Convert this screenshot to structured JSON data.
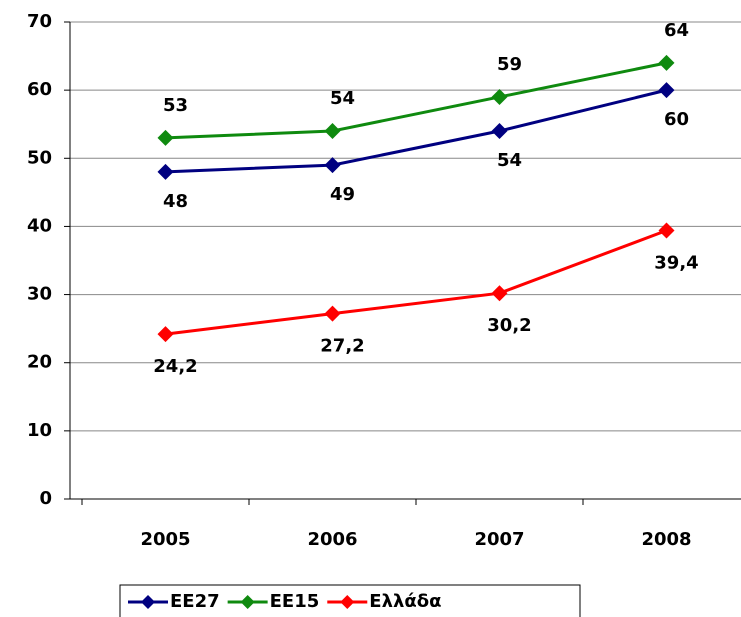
{
  "chart_data": {
    "type": "line",
    "categories": [
      "2005",
      "2006",
      "2007",
      "2008"
    ],
    "series": [
      {
        "name": "ΕΕ27",
        "color": "#000080",
        "values": [
          48,
          49,
          54,
          60
        ]
      },
      {
        "name": "ΕΕ15",
        "color": "#0f8a0f",
        "values": [
          53,
          54,
          59,
          64
        ]
      },
      {
        "name": "Ελλάδα",
        "color": "#ff0000",
        "values": [
          24.2,
          27.2,
          30.2,
          39.4
        ],
        "value_labels": [
          "24,2",
          "27,2",
          "30,2",
          "39,4"
        ]
      }
    ],
    "ylim": [
      0,
      70
    ],
    "yticks": [
      0,
      10,
      20,
      30,
      40,
      50,
      60,
      70
    ],
    "grid": true
  }
}
